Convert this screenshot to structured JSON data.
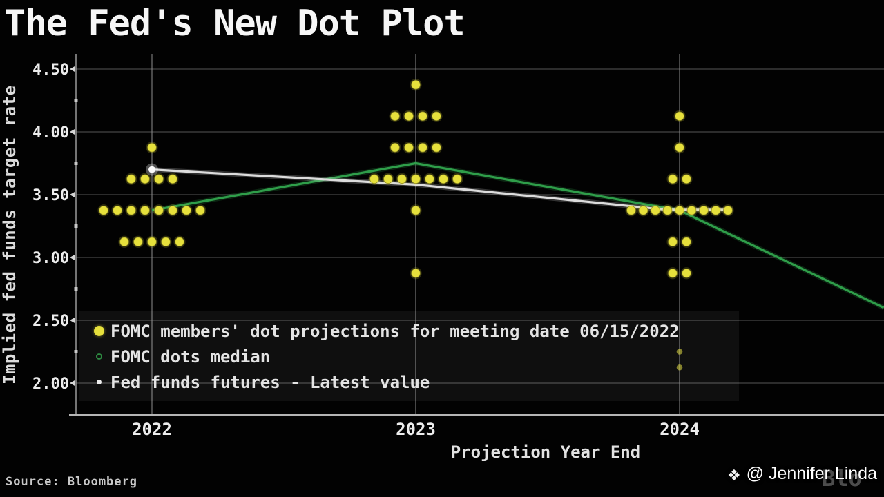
{
  "header": {
    "title": "The Fed's New Dot Plot"
  },
  "axes": {
    "y_label": "Implied fed funds target rate",
    "x_label": "Projection Year End"
  },
  "legend": {
    "items": [
      {
        "marker": "yellow-dot",
        "label": "FOMC members' dot projections for meeting date 06/15/2022"
      },
      {
        "marker": "green-open-circle",
        "label": "FOMC dots median"
      },
      {
        "marker": "white-dot",
        "label": "Fed funds futures - Latest value"
      }
    ]
  },
  "source": {
    "label": "Source: Bloomberg"
  },
  "watermark": {
    "icon": "binance-diamond-icon",
    "handle": "@ Jennifer Linda",
    "ghost_logo": "Blo"
  },
  "chart_data": {
    "type": "scatter",
    "title": "The Fed's New Dot Plot",
    "xlabel": "Projection Year End",
    "ylabel": "Implied fed funds target rate",
    "x_categories": [
      "2022",
      "2023",
      "2024"
    ],
    "y_ticks": [
      4.5,
      4.0,
      3.5,
      3.0,
      2.5,
      2.0
    ],
    "y_minor_ticks": [
      4.25,
      3.75,
      3.25,
      2.75,
      2.25
    ],
    "ylim": [
      1.74,
      4.62
    ],
    "grid": true,
    "legend_position": "lower-left",
    "colors": {
      "dots": "#e6e03c",
      "median": "#2f9e4a",
      "futures": "#dcdcdc",
      "grid_h": "#454545",
      "grid_v": "#8e8e8e",
      "axis": "#b5b5b5",
      "tick_text": "#ececec"
    },
    "dot_columns": [
      {
        "year": "2022",
        "groups": [
          {
            "rate": 3.875,
            "count": 1
          },
          {
            "rate": 3.625,
            "count": 4
          },
          {
            "rate": 3.375,
            "count": 8
          },
          {
            "rate": 3.125,
            "count": 5
          }
        ]
      },
      {
        "year": "2023",
        "groups": [
          {
            "rate": 4.375,
            "count": 1
          },
          {
            "rate": 4.125,
            "count": 4
          },
          {
            "rate": 3.875,
            "count": 4
          },
          {
            "rate": 3.625,
            "count": 7
          },
          {
            "rate": 3.375,
            "count": 1
          },
          {
            "rate": 2.875,
            "count": 1
          }
        ]
      },
      {
        "year": "2024",
        "groups": [
          {
            "rate": 4.125,
            "count": 1
          },
          {
            "rate": 3.875,
            "count": 1
          },
          {
            "rate": 3.625,
            "count": 2
          },
          {
            "rate": 3.375,
            "count": 9
          },
          {
            "rate": 3.125,
            "count": 2
          },
          {
            "rate": 2.875,
            "count": 2
          },
          {
            "rate": 2.25,
            "count": 1,
            "faint": true
          },
          {
            "rate": 2.125,
            "count": 1,
            "faint": true
          }
        ]
      }
    ],
    "series": [
      {
        "name": "FOMC dots median",
        "type": "line",
        "color": "#2f9e4a",
        "points": [
          [
            0,
            3.375
          ],
          [
            1,
            3.75
          ],
          [
            2,
            3.375
          ],
          [
            2.774,
            2.6
          ]
        ]
      },
      {
        "name": "Fed funds futures - Latest value",
        "type": "line",
        "color": "#dcdcdc",
        "marker_at_start": true,
        "points": [
          [
            0,
            3.7
          ],
          [
            1,
            3.58
          ],
          [
            1.95,
            3.38
          ],
          [
            2.2,
            3.38
          ]
        ]
      }
    ]
  }
}
